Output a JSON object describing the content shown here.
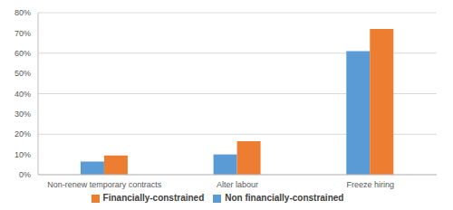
{
  "chart_data": {
    "type": "bar",
    "categories": [
      "Non-renew temporary contracts",
      "Alter labour",
      "Freeze hiring"
    ],
    "series": [
      {
        "name": "Non financially-constrained",
        "color": "#5b9bd5",
        "values": [
          6.5,
          10,
          61
        ]
      },
      {
        "name": "Financially-constrained",
        "color": "#ed7d31",
        "values": [
          9.5,
          16.5,
          72
        ]
      }
    ],
    "ylim": [
      0,
      80
    ],
    "yticks": [
      {
        "value": 0,
        "label": "0%"
      },
      {
        "value": 10,
        "label": "10%"
      },
      {
        "value": 20,
        "label": "20%"
      },
      {
        "value": 30,
        "label": "30%"
      },
      {
        "value": 40,
        "label": "40%"
      },
      {
        "value": 50,
        "label": "50%"
      },
      {
        "value": 60,
        "label": "60%"
      },
      {
        "value": 70,
        "label": "70%"
      },
      {
        "value": 80,
        "label": "80%"
      }
    ],
    "grid": true,
    "legend": "bottom"
  }
}
